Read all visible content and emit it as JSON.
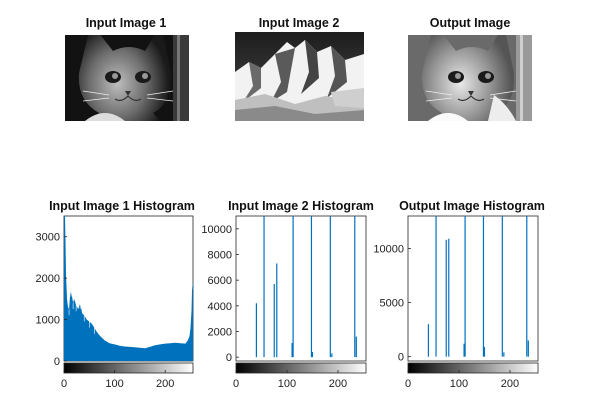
{
  "figure": {
    "images": [
      {
        "title": "Input Image 1",
        "content": "cat-photo"
      },
      {
        "title": "Input Image 2",
        "content": "mountain-photo"
      },
      {
        "title": "Output Image",
        "content": "histogram-matched-cat-photo"
      }
    ]
  },
  "chart_data": [
    {
      "type": "bar",
      "title": "Input Image 1 Histogram",
      "xlabel": "",
      "ylabel": "",
      "xlim": [
        0,
        255
      ],
      "ylim": [
        0,
        3500
      ],
      "xticks": [
        "0",
        "100",
        "200"
      ],
      "yticks": [
        "0",
        "1000",
        "2000",
        "3000"
      ],
      "bar_color": "#0072BD",
      "profile": [
        [
          0,
          3500
        ],
        [
          2,
          3500
        ],
        [
          3,
          2900
        ],
        [
          4,
          2100
        ],
        [
          6,
          1500
        ],
        [
          8,
          1300
        ],
        [
          10,
          1250
        ],
        [
          12,
          1600
        ],
        [
          14,
          1700
        ],
        [
          16,
          1550
        ],
        [
          18,
          1400
        ],
        [
          20,
          1500
        ],
        [
          24,
          1350
        ],
        [
          28,
          1250
        ],
        [
          32,
          1400
        ],
        [
          36,
          1150
        ],
        [
          40,
          1100
        ],
        [
          45,
          1000
        ],
        [
          50,
          950
        ],
        [
          55,
          900
        ],
        [
          60,
          800
        ],
        [
          65,
          700
        ],
        [
          70,
          620
        ],
        [
          75,
          560
        ],
        [
          80,
          500
        ],
        [
          90,
          430
        ],
        [
          100,
          400
        ],
        [
          110,
          370
        ],
        [
          120,
          350
        ],
        [
          130,
          340
        ],
        [
          140,
          330
        ],
        [
          150,
          320
        ],
        [
          160,
          310
        ],
        [
          170,
          340
        ],
        [
          180,
          380
        ],
        [
          190,
          400
        ],
        [
          200,
          420
        ],
        [
          210,
          430
        ],
        [
          220,
          440
        ],
        [
          230,
          430
        ],
        [
          240,
          420
        ],
        [
          245,
          500
        ],
        [
          248,
          600
        ],
        [
          250,
          800
        ],
        [
          252,
          1200
        ],
        [
          253,
          1700
        ],
        [
          255,
          1950
        ]
      ]
    },
    {
      "type": "bar",
      "title": "Input Image 2 Histogram",
      "xlabel": "",
      "ylabel": "",
      "xlim": [
        0,
        255
      ],
      "ylim": [
        -300,
        11000
      ],
      "xticks": [
        "0",
        "100",
        "200"
      ],
      "yticks": [
        "0",
        "2000",
        "4000",
        "6000",
        "8000",
        "10000"
      ],
      "bar_color": "#0072BD",
      "spikes": [
        [
          40,
          4200
        ],
        [
          55,
          11000
        ],
        [
          75,
          5700
        ],
        [
          80,
          7300
        ],
        [
          110,
          1100
        ],
        [
          112,
          11000
        ],
        [
          148,
          11000
        ],
        [
          150,
          400
        ],
        [
          185,
          11000
        ],
        [
          188,
          300
        ],
        [
          233,
          11000
        ],
        [
          236,
          1600
        ]
      ]
    },
    {
      "type": "bar",
      "title": "Output Image Histogram",
      "xlabel": "",
      "ylabel": "",
      "xlim": [
        0,
        255
      ],
      "ylim": [
        -400,
        13000
      ],
      "xticks": [
        "0",
        "100",
        "200"
      ],
      "yticks": [
        "0",
        "5000",
        "10000"
      ],
      "bar_color": "#0072BD",
      "spikes": [
        [
          40,
          3000
        ],
        [
          55,
          13000
        ],
        [
          75,
          10800
        ],
        [
          80,
          10900
        ],
        [
          110,
          1200
        ],
        [
          112,
          13000
        ],
        [
          148,
          13000
        ],
        [
          150,
          900
        ],
        [
          185,
          13000
        ],
        [
          188,
          400
        ],
        [
          233,
          13000
        ],
        [
          236,
          1500
        ]
      ]
    }
  ]
}
